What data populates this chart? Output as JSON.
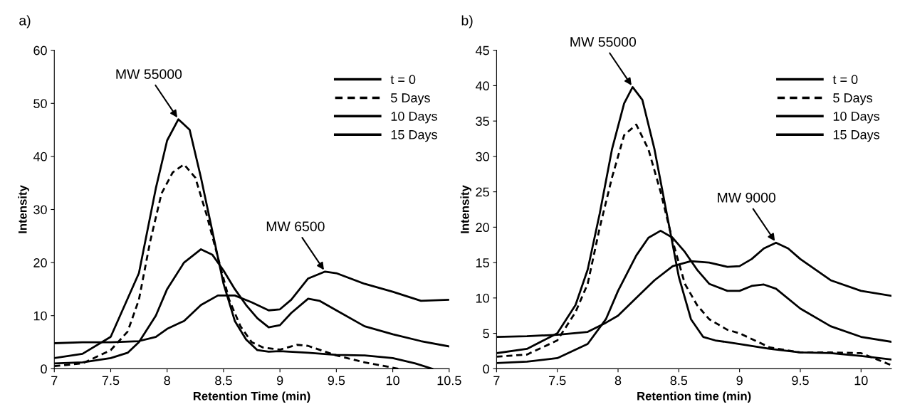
{
  "chart_data": [
    {
      "type": "line",
      "title": "a)",
      "xlabel": "Retention Time (min)",
      "ylabel": "Intensity",
      "xlim": [
        7,
        10.5
      ],
      "ylim": [
        0,
        60
      ],
      "xticks": [
        7,
        7.5,
        8,
        8.5,
        9,
        9.5,
        10,
        10.5
      ],
      "yticks": [
        0,
        10,
        20,
        30,
        40,
        50,
        60
      ],
      "grid": false,
      "legend": "top right",
      "marker": "none",
      "annotations": [
        {
          "text": "MW 55000",
          "x": 8.1,
          "y": 47
        },
        {
          "text": "MW 6500",
          "x": 9.4,
          "y": 18.3
        }
      ],
      "series": [
        {
          "name": "t = 0",
          "color": "#000000",
          "line_style": "solid",
          "x": [
            7,
            7.25,
            7.5,
            7.75,
            7.9,
            8.0,
            8.1,
            8.2,
            8.3,
            8.4,
            8.5,
            8.6,
            8.7,
            8.8,
            8.9,
            9.0,
            9.25,
            9.5,
            9.75,
            10.0,
            10.2,
            10.35
          ],
          "values": [
            2,
            2.8,
            6,
            18,
            34,
            43,
            47,
            45,
            36,
            26,
            16,
            9,
            5.5,
            3.5,
            3.2,
            3.3,
            3,
            2.6,
            2.5,
            2,
            1,
            0
          ]
        },
        {
          "name": "5 Days",
          "color": "#000000",
          "line_style": "dashed",
          "x": [
            7,
            7.25,
            7.5,
            7.65,
            7.75,
            7.85,
            7.95,
            8.05,
            8.15,
            8.25,
            8.35,
            8.45,
            8.55,
            8.65,
            8.75,
            8.85,
            9.0,
            9.15,
            9.25,
            9.5,
            9.75,
            10.05
          ],
          "values": [
            0.5,
            1,
            3.5,
            7,
            13,
            24,
            33,
            37,
            38.5,
            36,
            29,
            21,
            13,
            8,
            5,
            4,
            3.6,
            4.5,
            4.3,
            2.5,
            1.2,
            0
          ]
        },
        {
          "name": "10 Days",
          "color": "#000000",
          "line_style": "solid",
          "x": [
            7,
            7.25,
            7.5,
            7.65,
            7.75,
            7.9,
            8.0,
            8.15,
            8.3,
            8.4,
            8.5,
            8.6,
            8.7,
            8.8,
            8.9,
            9.0,
            9.1,
            9.25,
            9.35,
            9.5,
            9.75,
            10.0,
            10.25,
            10.5
          ],
          "values": [
            1,
            1.2,
            2,
            3,
            5,
            10,
            15,
            20,
            22.5,
            21.5,
            18.5,
            15,
            12,
            9.5,
            7.8,
            8.2,
            10.5,
            13.2,
            12.8,
            11,
            8,
            6.5,
            5.2,
            4.2
          ]
        },
        {
          "name": "15 Days",
          "color": "#000000",
          "line_style": "solid",
          "x": [
            7,
            7.25,
            7.5,
            7.75,
            7.9,
            8.0,
            8.15,
            8.3,
            8.45,
            8.6,
            8.75,
            8.9,
            9.0,
            9.1,
            9.25,
            9.4,
            9.5,
            9.75,
            10.0,
            10.25,
            10.5
          ],
          "values": [
            4.8,
            5,
            5,
            5.2,
            6,
            7.5,
            9,
            12,
            13.8,
            13.8,
            12.5,
            11,
            11.2,
            13,
            17,
            18.3,
            18,
            16,
            14.5,
            12.8,
            13
          ]
        }
      ]
    },
    {
      "type": "line",
      "title": "b)",
      "xlabel": "Retention time (min)",
      "ylabel": "Intensity",
      "xlim": [
        7,
        10.25
      ],
      "ylim": [
        0,
        45
      ],
      "xticks": [
        7,
        7.5,
        8,
        8.5,
        9,
        9.5,
        10
      ],
      "yticks": [
        0,
        5,
        10,
        15,
        20,
        25,
        30,
        35,
        40,
        45
      ],
      "grid": false,
      "legend": "top right",
      "marker": "none",
      "annotations": [
        {
          "text": "MW 55000",
          "x": 8.12,
          "y": 39.8
        },
        {
          "text": "MW 9000",
          "x": 9.3,
          "y": 17.8
        }
      ],
      "series": [
        {
          "name": "t = 0",
          "color": "#000000",
          "line_style": "solid",
          "x": [
            7,
            7.25,
            7.5,
            7.65,
            7.75,
            7.85,
            7.95,
            8.05,
            8.12,
            8.2,
            8.3,
            8.4,
            8.5,
            8.6,
            8.7,
            8.8,
            9.0,
            9.25,
            9.5,
            9.75,
            10.0,
            10.25
          ],
          "values": [
            2.2,
            2.8,
            5,
            9,
            14,
            22,
            31,
            37.5,
            39.8,
            38,
            31,
            22,
            13,
            7,
            4.5,
            4,
            3.5,
            2.8,
            2.3,
            2.2,
            1.8,
            1.3
          ]
        },
        {
          "name": "5 Days",
          "color": "#000000",
          "line_style": "dashed",
          "x": [
            7,
            7.25,
            7.5,
            7.65,
            7.75,
            7.85,
            7.95,
            8.05,
            8.15,
            8.25,
            8.35,
            8.45,
            8.55,
            8.65,
            8.75,
            8.9,
            9.0,
            9.25,
            9.5,
            9.75,
            10.0,
            10.25
          ],
          "values": [
            1.7,
            2,
            4,
            8,
            12,
            20,
            27,
            33,
            34.5,
            31,
            25,
            18,
            12,
            9,
            7,
            5.5,
            5,
            3,
            2.3,
            2.3,
            2.2,
            0.5
          ]
        },
        {
          "name": "10 Days",
          "color": "#000000",
          "line_style": "solid",
          "x": [
            7,
            7.25,
            7.5,
            7.75,
            7.9,
            8.0,
            8.15,
            8.25,
            8.35,
            8.45,
            8.55,
            8.65,
            8.75,
            8.9,
            9.0,
            9.1,
            9.2,
            9.3,
            9.5,
            9.75,
            10.0,
            10.25
          ],
          "values": [
            0.8,
            1,
            1.5,
            3.5,
            7,
            11,
            16,
            18.5,
            19.5,
            18.5,
            16.5,
            14,
            12,
            11,
            11,
            11.7,
            11.9,
            11.3,
            8.5,
            6,
            4.5,
            3.8
          ]
        },
        {
          "name": "15 Days",
          "color": "#000000",
          "line_style": "solid",
          "x": [
            7,
            7.25,
            7.5,
            7.75,
            7.9,
            8.0,
            8.15,
            8.3,
            8.45,
            8.6,
            8.75,
            8.9,
            9.0,
            9.1,
            9.2,
            9.3,
            9.4,
            9.5,
            9.75,
            10.0,
            10.25
          ],
          "values": [
            4.5,
            4.6,
            4.8,
            5.2,
            6.5,
            7.5,
            10,
            12.5,
            14.5,
            15.2,
            15,
            14.4,
            14.5,
            15.5,
            17,
            17.8,
            17,
            15.5,
            12.5,
            11,
            10.3
          ]
        }
      ]
    }
  ]
}
